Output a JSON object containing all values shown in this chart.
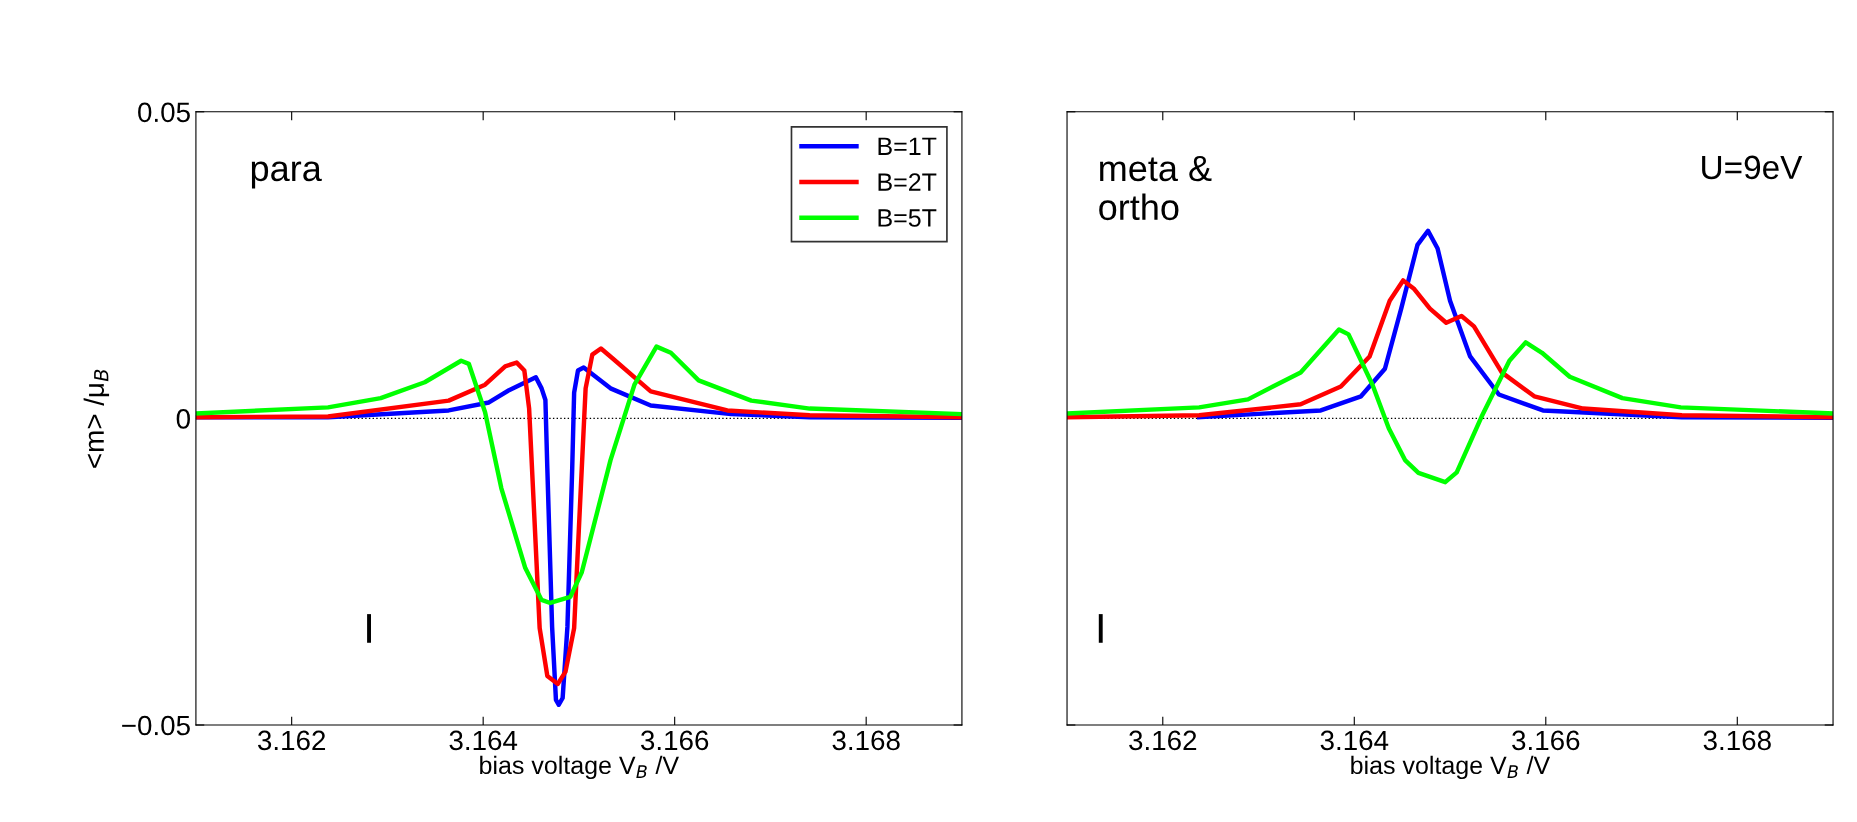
{
  "chart_data": [
    {
      "type": "line",
      "xlabel": "bias voltage V$_{B}$ /V",
      "ylabel": "<m> /μ$_{B}$",
      "xlim": [
        3.161,
        3.169
      ],
      "xticks": [
        3.162,
        3.164,
        3.166,
        3.168
      ],
      "ylim": [
        -0.05,
        0.05
      ],
      "yticks": [
        {
          "value": -0.05,
          "label": "−0.05"
        },
        0,
        0.05
      ],
      "grid": false,
      "legend": "top right",
      "marker": "none",
      "line_style": "solid",
      "ref_lines": [
        {
          "axis": "y",
          "value": 0,
          "line_style": "dotted",
          "color": "#000000"
        }
      ],
      "annotations": [
        "para",
        "I"
      ],
      "series": [
        {
          "name": "B=1T",
          "color": "#0000ff",
          "x": [
            3.161,
            3.16238,
            3.16364,
            3.16406,
            3.16427,
            3.16455,
            3.16461,
            3.16465,
            3.16467,
            3.16472,
            3.16476,
            3.16479,
            3.16483,
            3.16488,
            3.16493,
            3.16495,
            3.16499,
            3.16505,
            3.16533,
            3.16575,
            3.16659,
            3.16741,
            3.169
          ],
          "values": [
            0.0002,
            0.0002,
            0.0013,
            0.0026,
            0.0046,
            0.0067,
            0.0049,
            0.003,
            -0.0081,
            -0.034,
            -0.0459,
            -0.0467,
            -0.0456,
            -0.034,
            -0.0081,
            0.0042,
            0.0078,
            0.0083,
            0.0049,
            0.0021,
            0.0007,
            0.0002,
            0.0001
          ]
        },
        {
          "name": "B=2T",
          "color": "#ff0000",
          "x": [
            3.161,
            3.16238,
            3.16364,
            3.16402,
            3.16423,
            3.16435,
            3.16443,
            3.16448,
            3.16453,
            3.16459,
            3.16467,
            3.16478,
            3.16486,
            3.16495,
            3.16501,
            3.16507,
            3.16514,
            3.16523,
            3.16535,
            3.16575,
            3.16655,
            3.16741,
            3.169
          ],
          "values": [
            0.0002,
            0.0003,
            0.0029,
            0.0055,
            0.0085,
            0.0091,
            0.0078,
            0.0016,
            -0.0146,
            -0.0342,
            -0.042,
            -0.0433,
            -0.0413,
            -0.0342,
            -0.0146,
            0.0049,
            0.0104,
            0.0114,
            0.0098,
            0.0044,
            0.0013,
            0.0005,
            0.0002
          ]
        },
        {
          "name": "B=5T",
          "color": "#00ff00",
          "x": [
            3.161,
            3.16238,
            3.16293,
            3.16339,
            3.16377,
            3.16385,
            3.16402,
            3.16419,
            3.16444,
            3.16461,
            3.1647,
            3.16491,
            3.16503,
            3.16533,
            3.16558,
            3.16581,
            3.16596,
            3.16625,
            3.1668,
            3.16741,
            3.169
          ],
          "values": [
            0.0008,
            0.0018,
            0.0033,
            0.0059,
            0.0094,
            0.0089,
            0.001,
            -0.0114,
            -0.0244,
            -0.0296,
            -0.0301,
            -0.0291,
            -0.0251,
            -0.0068,
            0.0055,
            0.0117,
            0.0107,
            0.0062,
            0.0029,
            0.0016,
            0.0007
          ]
        }
      ]
    },
    {
      "type": "line",
      "xlabel": "bias voltage V$_{B}$ /V",
      "xlim": [
        3.161,
        3.169
      ],
      "xticks": [
        3.162,
        3.164,
        3.166,
        3.168
      ],
      "ylim": [
        -0.05,
        0.05
      ],
      "yticks": [
        {
          "value": -0.05,
          "label": null
        },
        {
          "value": 0,
          "label": null
        },
        {
          "value": 0.05,
          "label": null
        }
      ],
      "tick_labels": "x",
      "grid": false,
      "marker": "none",
      "line_style": "solid",
      "ref_lines": [
        {
          "axis": "y",
          "value": 0,
          "line_style": "dotted",
          "color": "#000000"
        }
      ],
      "annotations": [
        "meta &\northo",
        "U=9eV",
        "I"
      ],
      "series": [
        {
          "color": "#0000ff",
          "x": [
            3.16238,
            3.16365,
            3.16407,
            3.16432,
            3.16449,
            3.16466,
            3.16477,
            3.16487,
            3.165,
            3.16521,
            3.16551,
            3.16597,
            3.16742,
            3.169
          ],
          "values": [
            0.0002,
            0.0013,
            0.0036,
            0.0081,
            0.0179,
            0.0283,
            0.0306,
            0.0277,
            0.0192,
            0.0101,
            0.0039,
            0.0013,
            0.0002,
            0.0001
          ]
        },
        {
          "color": "#ff0000",
          "x": [
            3.161,
            3.16238,
            3.16344,
            3.16386,
            3.16416,
            3.16437,
            3.16451,
            3.16462,
            3.16479,
            3.16496,
            3.16512,
            3.16525,
            3.16554,
            3.16588,
            3.16639,
            3.16742,
            3.169
          ],
          "values": [
            0.0002,
            0.0005,
            0.0023,
            0.0052,
            0.0101,
            0.0192,
            0.0225,
            0.0212,
            0.0179,
            0.0156,
            0.0167,
            0.015,
            0.0075,
            0.0036,
            0.0016,
            0.0005,
            0.0002
          ]
        },
        {
          "color": "#00ff00",
          "x": [
            3.161,
            3.16238,
            3.16289,
            3.16344,
            3.16384,
            3.16394,
            3.16419,
            3.16436,
            3.16453,
            3.16467,
            3.16495,
            3.16507,
            3.16533,
            3.16562,
            3.16579,
            3.16596,
            3.16625,
            3.1668,
            3.16741,
            3.169
          ],
          "values": [
            0.0008,
            0.0018,
            0.0031,
            0.0075,
            0.0145,
            0.0137,
            0.0055,
            -0.0016,
            -0.0068,
            -0.0089,
            -0.0104,
            -0.0088,
            0.0003,
            0.0094,
            0.0124,
            0.0107,
            0.0068,
            0.0033,
            0.0018,
            0.0008
          ]
        }
      ]
    }
  ]
}
